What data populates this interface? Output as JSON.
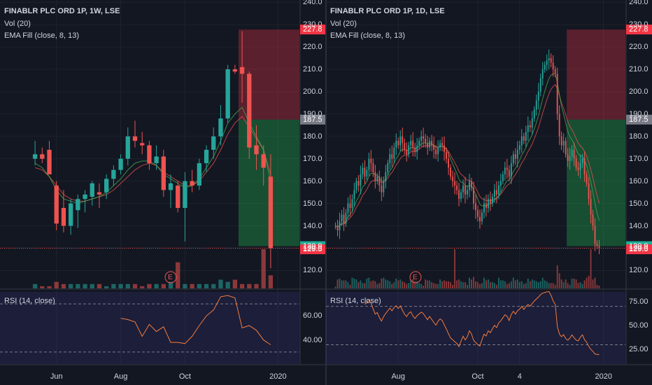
{
  "chart_data": [
    {
      "type": "candlestick",
      "title": "FINABLR PLC ORD 1P, 1W, LSE",
      "indicator_labels": [
        "Vol (20)",
        "EMA Fill (close, 8, 13)"
      ],
      "y_ticks": [
        "240.0",
        "230.0",
        "220.0",
        "210.0",
        "200.0",
        "190.0",
        "180.0",
        "170.0",
        "160.0",
        "150.0",
        "140.0",
        "130.0",
        "120.0"
      ],
      "ylim": [
        112,
        241
      ],
      "price_tags": [
        {
          "label": "227.8",
          "value": 227.8,
          "color": "#f23645"
        },
        {
          "label": "187.5",
          "value": 187.5,
          "color": "#787b86"
        },
        {
          "label": "130.9",
          "value": 130.9,
          "color": "#22ab94"
        },
        {
          "label": "129.5",
          "value": 129.5,
          "color": "#f23645"
        }
      ],
      "x_ticks": [
        "Jun",
        "Aug",
        "Oct",
        "2020"
      ],
      "x_tick_index": [
        3,
        12,
        21,
        34
      ],
      "candles": [
        {
          "o": 170,
          "h": 178,
          "l": 167,
          "c": 172
        },
        {
          "o": 172,
          "h": 175,
          "l": 168,
          "c": 170
        },
        {
          "o": 174,
          "h": 178,
          "l": 163,
          "c": 163
        },
        {
          "o": 158,
          "h": 160,
          "l": 138,
          "c": 141
        },
        {
          "o": 148,
          "h": 156,
          "l": 137,
          "c": 140
        },
        {
          "o": 140,
          "h": 152,
          "l": 136,
          "c": 150
        },
        {
          "o": 147,
          "h": 154,
          "l": 139,
          "c": 152
        },
        {
          "o": 152,
          "h": 156,
          "l": 146,
          "c": 154
        },
        {
          "o": 153,
          "h": 160,
          "l": 149,
          "c": 159
        },
        {
          "o": 155,
          "h": 159,
          "l": 148,
          "c": 154
        },
        {
          "o": 155,
          "h": 163,
          "l": 152,
          "c": 161
        },
        {
          "o": 161,
          "h": 167,
          "l": 158,
          "c": 165
        },
        {
          "o": 165,
          "h": 172,
          "l": 163,
          "c": 170
        },
        {
          "o": 170,
          "h": 184,
          "l": 167,
          "c": 180
        },
        {
          "o": 180,
          "h": 187,
          "l": 175,
          "c": 178
        },
        {
          "o": 177,
          "h": 182,
          "l": 172,
          "c": 176
        },
        {
          "o": 176,
          "h": 178,
          "l": 165,
          "c": 168
        },
        {
          "o": 168,
          "h": 176,
          "l": 165,
          "c": 171
        },
        {
          "o": 171,
          "h": 174,
          "l": 153,
          "c": 156
        },
        {
          "o": 156,
          "h": 163,
          "l": 148,
          "c": 159
        },
        {
          "o": 158,
          "h": 160,
          "l": 146,
          "c": 148
        },
        {
          "o": 148,
          "h": 164,
          "l": 133,
          "c": 160
        },
        {
          "o": 160,
          "h": 165,
          "l": 155,
          "c": 158
        },
        {
          "o": 158,
          "h": 170,
          "l": 156,
          "c": 168
        },
        {
          "o": 168,
          "h": 176,
          "l": 164,
          "c": 174
        },
        {
          "o": 174,
          "h": 184,
          "l": 170,
          "c": 180
        },
        {
          "o": 180,
          "h": 194,
          "l": 176,
          "c": 188
        },
        {
          "o": 188,
          "h": 212,
          "l": 186,
          "c": 210
        },
        {
          "o": 210,
          "h": 212,
          "l": 208,
          "c": 209
        },
        {
          "o": 211,
          "h": 227,
          "l": 195,
          "c": 208
        },
        {
          "o": 208,
          "h": 209,
          "l": 170,
          "c": 175
        },
        {
          "o": 176,
          "h": 185,
          "l": 165,
          "c": 172
        },
        {
          "o": 172,
          "h": 176,
          "l": 158,
          "c": 166
        },
        {
          "o": 162,
          "h": 172,
          "l": 121,
          "c": 130
        }
      ],
      "volume": [
        2,
        1,
        1,
        3,
        2,
        2,
        2,
        2,
        2,
        2,
        1,
        2,
        2,
        2,
        2,
        1,
        2,
        2,
        2,
        3,
        12,
        2,
        2,
        2,
        2,
        2,
        4,
        3,
        4,
        2,
        2,
        2,
        18,
        6
      ],
      "volume_first_bar": 45,
      "ema_fast": [
        168,
        166,
        162,
        156,
        152,
        151,
        150,
        151,
        152,
        153,
        155,
        158,
        161,
        165,
        168,
        169,
        169,
        167,
        163,
        161,
        159,
        157,
        158,
        161,
        166,
        171,
        178,
        186,
        190,
        193,
        186,
        180,
        174,
        160
      ],
      "ema_slow": [
        166,
        165,
        162,
        158,
        154,
        152,
        151,
        151,
        152,
        153,
        154,
        156,
        159,
        162,
        165,
        167,
        168,
        167,
        164,
        162,
        160,
        158,
        158,
        160,
        164,
        168,
        174,
        181,
        186,
        189,
        184,
        179,
        174,
        163
      ],
      "rsi": {
        "label": "RSI (14, close)",
        "y_ticks": [
          "60.00",
          "40.00"
        ],
        "ylim": [
          20,
          80
        ],
        "upper": 70,
        "lower": 30,
        "values": [
          null,
          null,
          null,
          null,
          null,
          null,
          null,
          null,
          null,
          null,
          null,
          null,
          58,
          57,
          55,
          43,
          53,
          47,
          51,
          38,
          38,
          37,
          43,
          52,
          60,
          65,
          76,
          77,
          75,
          50,
          52,
          48,
          40,
          36
        ]
      },
      "trade": {
        "entry": 187.5,
        "target": 130.9,
        "stop": 227.8,
        "from_index": 29
      }
    },
    {
      "type": "candlestick",
      "title": "FINABLR PLC ORD 1P, 1D, LSE",
      "indicator_labels": [
        "Vol (20)",
        "EMA Fill (close, 8, 13)"
      ],
      "y_ticks": [
        "240.0",
        "230.0",
        "220.0",
        "210.0",
        "200.0",
        "190.0",
        "180.0",
        "170.0",
        "160.0",
        "150.0",
        "140.0",
        "130.0",
        "120.0"
      ],
      "ylim": [
        112,
        241
      ],
      "price_tags": [
        {
          "label": "227.8",
          "value": 227.8,
          "color": "#f23645"
        },
        {
          "label": "187.5",
          "value": 187.5,
          "color": "#787b86"
        },
        {
          "label": "130.9",
          "value": 130.9,
          "color": "#22ab94"
        },
        {
          "label": "129.5",
          "value": 129.5,
          "color": "#f23645"
        }
      ],
      "x_ticks": [
        "Aug",
        "Oct",
        "4",
        "2020"
      ],
      "x_tick_index": [
        30,
        68,
        88,
        128
      ],
      "closes": [
        140,
        138,
        142,
        145,
        141,
        146,
        150,
        148,
        152,
        156,
        160,
        158,
        163,
        166,
        162,
        165,
        170,
        168,
        164,
        160,
        162,
        158,
        155,
        160,
        164,
        168,
        172,
        170,
        175,
        178,
        176,
        180,
        177,
        174,
        172,
        176,
        178,
        175,
        173,
        176,
        178,
        180,
        179,
        177,
        175,
        178,
        176,
        174,
        172,
        175,
        177,
        176,
        173,
        170,
        166,
        162,
        160,
        158,
        156,
        152,
        155,
        158,
        154,
        156,
        160,
        157,
        150,
        147,
        144,
        142,
        146,
        150,
        148,
        152,
        150,
        153,
        156,
        154,
        158,
        160,
        163,
        166,
        165,
        162,
        168,
        172,
        170,
        174,
        176,
        180,
        178,
        182,
        185,
        184,
        188,
        192,
        196,
        200,
        206,
        210,
        212,
        214,
        215,
        213,
        210,
        208,
        190,
        180,
        176,
        178,
        172,
        169,
        171,
        174,
        170,
        166,
        165,
        168,
        170,
        163,
        159,
        152,
        145,
        140,
        132,
        131,
        130
      ],
      "volume_first_bar": 12,
      "volume_spike_index": [
        57,
        122
      ],
      "rsi": {
        "label": "RSI (14, close)",
        "y_ticks": [
          "75.00",
          "50.00",
          "25.00"
        ],
        "ylim": [
          10,
          85
        ],
        "upper": 70,
        "lower": 30
      },
      "trade": {
        "entry": 187.5,
        "target": 130.9,
        "stop": 227.8,
        "from_index": 111
      }
    }
  ],
  "badge": "E"
}
